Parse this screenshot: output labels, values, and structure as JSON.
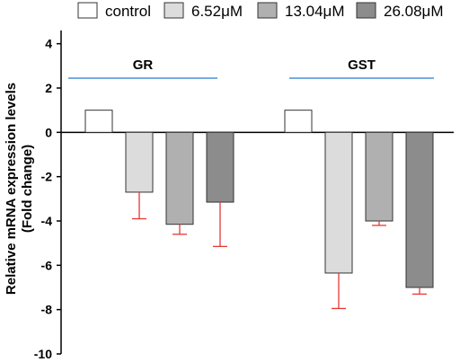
{
  "chart_data": {
    "type": "bar",
    "categories": [
      "GR",
      "GST"
    ],
    "series": [
      {
        "name": "control",
        "values": [
          1.0,
          1.0
        ],
        "errors": [
          0,
          0
        ],
        "color": "#ffffff"
      },
      {
        "name": "6.52μM",
        "values": [
          -2.7,
          -6.35
        ],
        "errors": [
          1.2,
          1.6
        ],
        "color": "#dcdcdc"
      },
      {
        "name": "13.04μM",
        "values": [
          -4.15,
          -4.0
        ],
        "errors": [
          0.45,
          0.2
        ],
        "color": "#b0b0b0"
      },
      {
        "name": "26.08μM",
        "values": [
          -3.15,
          -7.0
        ],
        "errors": [
          2.0,
          0.3
        ],
        "color": "#8c8c8c"
      }
    ],
    "ylabel": [
      "Relative mRNA expression levels",
      "(Fold change)"
    ],
    "ylim": [
      -10,
      5
    ],
    "yticks": [
      "4",
      "2",
      "0",
      "-2",
      "-4",
      "-6",
      "-8",
      "-10"
    ],
    "grid": false,
    "legend": "top",
    "error_bar_color": "#e53935",
    "group_line_color": "#4a90d9"
  }
}
